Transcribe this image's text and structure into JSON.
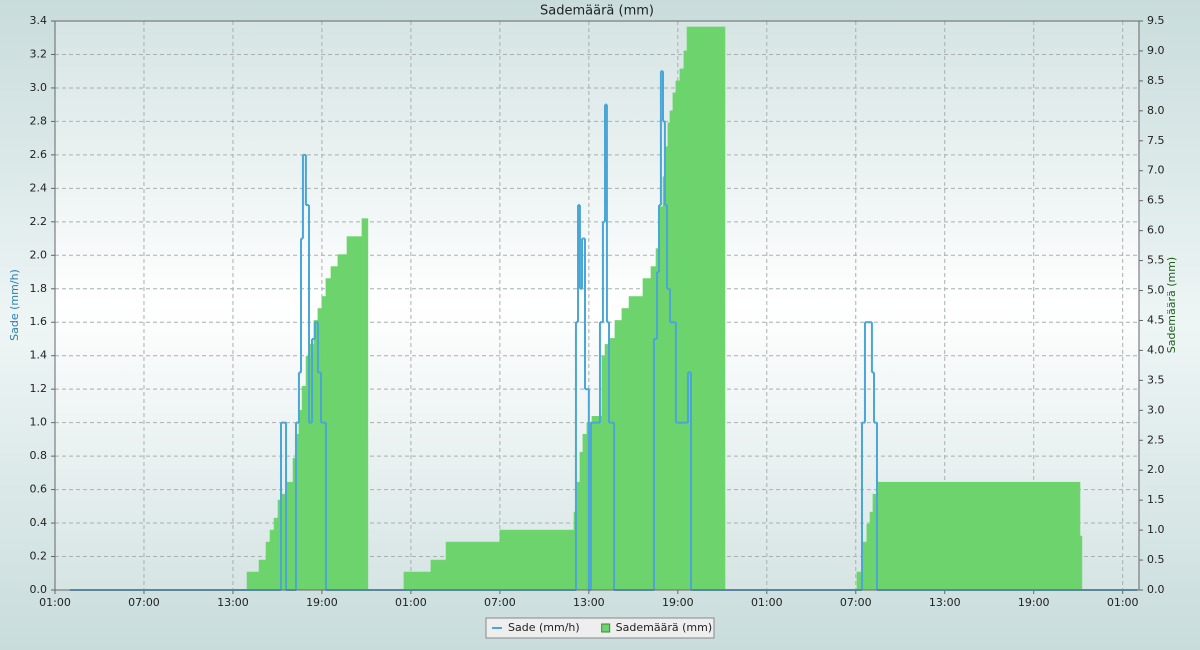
{
  "chart_data": {
    "type": "line",
    "title": "Sademäärä (mm)",
    "y_label": "Sade (mm/h)",
    "y2_label": "Sademäärä (mm)",
    "xlim": [
      0,
      73.1
    ],
    "xticks": [
      {
        "value": 0,
        "label": "01:00"
      },
      {
        "value": 6,
        "label": "07:00"
      },
      {
        "value": 12,
        "label": "13:00"
      },
      {
        "value": 18,
        "label": "19:00"
      },
      {
        "value": 24,
        "label": "01:00"
      },
      {
        "value": 30,
        "label": "07:00"
      },
      {
        "value": 36,
        "label": "13:00"
      },
      {
        "value": 42,
        "label": "19:00"
      },
      {
        "value": 48,
        "label": "01:00"
      },
      {
        "value": 54,
        "label": "07:00"
      },
      {
        "value": 60,
        "label": "13:00"
      },
      {
        "value": 66,
        "label": "19:00"
      },
      {
        "value": 72,
        "label": "01:00"
      }
    ],
    "ylim": [
      0,
      3.4
    ],
    "yticks": [
      {
        "value": 0,
        "label": "0.0"
      },
      0.2,
      0.4,
      0.6,
      0.8,
      {
        "value": 1,
        "label": "1.0"
      },
      1.2,
      1.4,
      1.6,
      1.8,
      {
        "value": 2,
        "label": "2.0"
      },
      2.2,
      2.4,
      2.6,
      2.8,
      {
        "value": 3,
        "label": "3.0"
      },
      3.2,
      3.4
    ],
    "y2lim": [
      0,
      9.5
    ],
    "y2ticks": [
      {
        "value": 0,
        "label": "0.0"
      },
      0.5,
      {
        "value": 1,
        "label": "1.0"
      },
      1.5,
      {
        "value": 2,
        "label": "2.0"
      },
      2.5,
      {
        "value": 3,
        "label": "3.0"
      },
      3.5,
      {
        "value": 4,
        "label": "4.0"
      },
      4.5,
      {
        "value": 5,
        "label": "5.0"
      },
      5.5,
      {
        "value": 6,
        "label": "6.0"
      },
      6.5,
      {
        "value": 7,
        "label": "7.0"
      },
      7.5,
      {
        "value": 8,
        "label": "8.0"
      },
      8.5,
      {
        "value": 9,
        "label": "9.0"
      },
      9.5
    ],
    "grid": true,
    "legend": "bottom",
    "series": [
      {
        "name": "Sade (mm/h)",
        "color": "#4aa6d6",
        "step": true,
        "fill": false,
        "x": [
          1.0,
          15.24,
          15.58,
          16.25,
          16.45,
          16.59,
          16.72,
          16.92,
          17.13,
          17.33,
          17.53,
          17.73,
          17.94,
          18.27,
          35.13,
          35.27,
          35.4,
          35.54,
          35.74,
          36.0,
          36.14,
          36.75,
          36.95,
          37.09,
          37.22,
          37.36,
          37.7,
          40.39,
          40.6,
          40.73,
          40.86,
          41.0,
          41.13,
          41.27,
          41.47,
          41.87,
          42.68,
          42.89,
          54.42,
          54.62,
          55.09,
          55.23,
          55.43,
          73.0
        ],
        "values": [
          0,
          1.0,
          0,
          1.0,
          1.3,
          2.1,
          2.6,
          2.3,
          1.0,
          1.5,
          1.6,
          1.3,
          1.0,
          0,
          1.6,
          2.3,
          1.8,
          2.1,
          1.2,
          0,
          1.0,
          1.6,
          2.2,
          2.9,
          1.6,
          1.0,
          0,
          1.5,
          1.9,
          2.3,
          3.1,
          2.8,
          2.3,
          1.8,
          1.6,
          1.0,
          1.3,
          0,
          1.0,
          1.6,
          1.3,
          1.0,
          0,
          0
        ]
      },
      {
        "name": "Sademäärä (mm)",
        "color": "#6dd46d",
        "step": true,
        "fill": true,
        "axis": "y2",
        "x": [
          12.95,
          13.76,
          14.23,
          14.5,
          14.77,
          15.04,
          15.31,
          15.64,
          16.05,
          16.25,
          16.45,
          16.66,
          16.93,
          17.2,
          17.46,
          17.73,
          18.0,
          18.27,
          18.61,
          19.08,
          19.69,
          20.7,
          21.1,
          23.53,
          25.35,
          26.37,
          30.0,
          35.0,
          35.2,
          35.4,
          35.6,
          35.87,
          36.21,
          36.88,
          37.09,
          37.42,
          37.76,
          38.23,
          38.71,
          39.65,
          40.19,
          40.53,
          40.73,
          41.0,
          41.2,
          41.33,
          41.47,
          41.67,
          41.87,
          42.14,
          42.41,
          42.62,
          45.18,
          54.08,
          54.48,
          54.75,
          54.96,
          55.16,
          55.43,
          69.12,
          69.25
        ],
        "values": [
          0.3,
          0.5,
          0.8,
          1.0,
          1.2,
          1.5,
          1.6,
          1.8,
          2.2,
          2.6,
          3.0,
          3.4,
          3.9,
          4.1,
          4.5,
          4.7,
          4.9,
          5.2,
          5.4,
          5.6,
          5.9,
          6.2,
          0,
          0.3,
          0.5,
          0.8,
          1.0,
          1.3,
          1.8,
          2.3,
          2.6,
          2.8,
          2.9,
          3.9,
          4.1,
          4.2,
          4.5,
          4.7,
          4.9,
          5.2,
          5.4,
          5.7,
          6.4,
          6.9,
          7.4,
          7.8,
          8.0,
          8.3,
          8.5,
          8.7,
          9.0,
          9.4,
          0,
          0.3,
          0.8,
          1.1,
          1.3,
          1.6,
          1.8,
          0.9,
          0
        ]
      }
    ]
  }
}
